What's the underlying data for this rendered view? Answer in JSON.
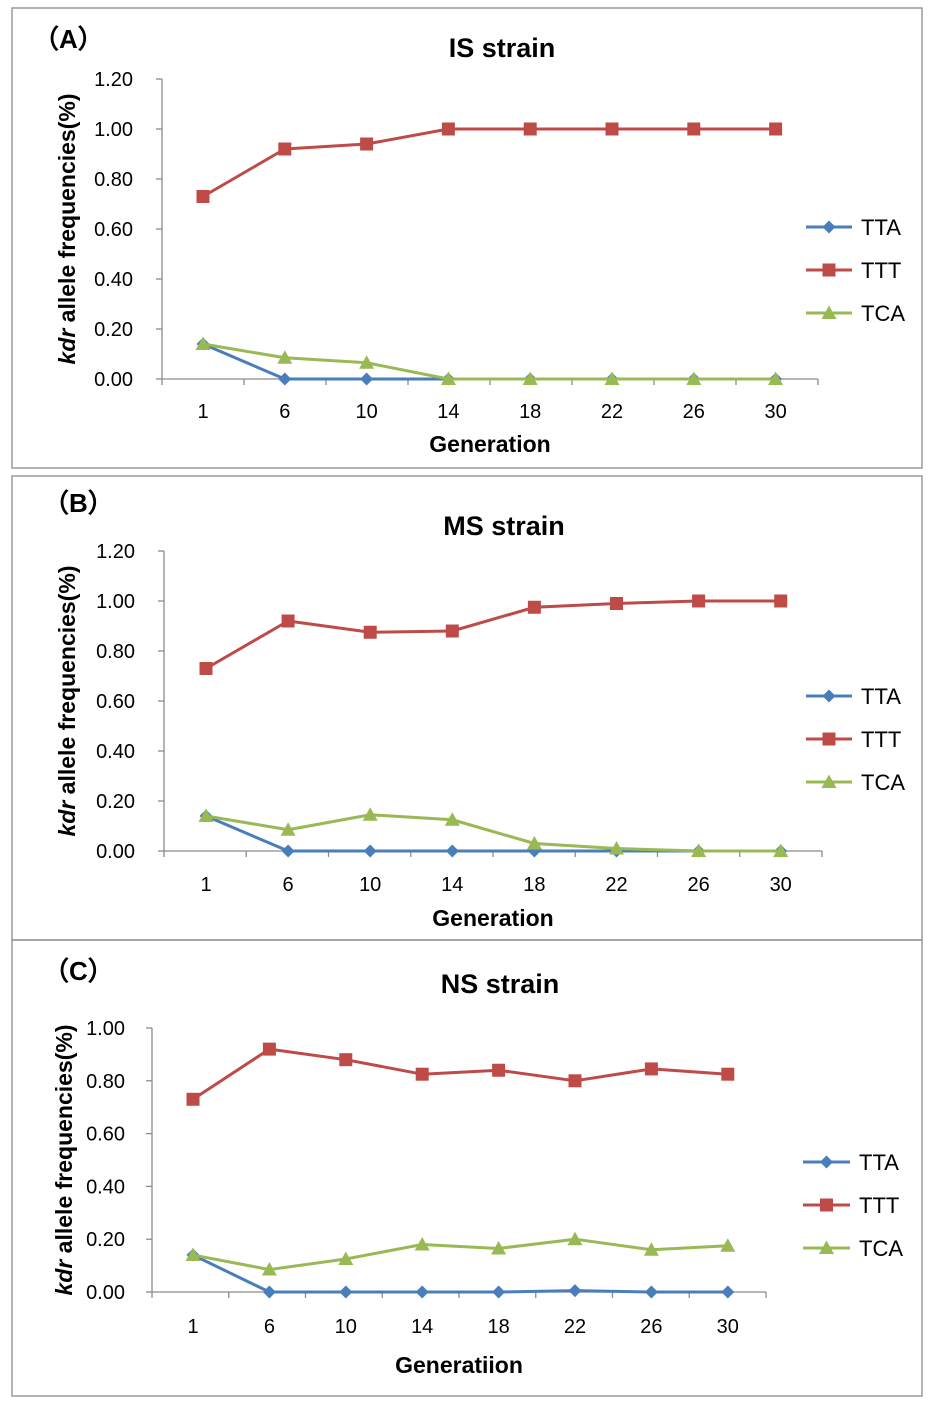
{
  "chart_data": [
    {
      "type": "line",
      "panel_label": "（A）",
      "title": "IS strain",
      "xlabel": "Generation",
      "ylabel_italic": "kdr",
      "ylabel_rest": " allele frequencies(%)",
      "categories": [
        "1",
        "6",
        "10",
        "14",
        "18",
        "22",
        "26",
        "30"
      ],
      "ylim": [
        0,
        1.2
      ],
      "yticks": [
        "0.00",
        "0.20",
        "0.40",
        "0.60",
        "0.80",
        "1.00",
        "1.20"
      ],
      "legend_position": "right",
      "grid": false,
      "series": [
        {
          "name": "TTA",
          "color": "#4a7ebb",
          "marker": "diamond",
          "values": [
            0.14,
            0,
            0,
            0,
            0,
            0,
            0,
            0
          ]
        },
        {
          "name": "TTT",
          "color": "#be4b48",
          "marker": "square",
          "values": [
            0.73,
            0.92,
            0.94,
            1.0,
            1.0,
            1.0,
            1.0,
            1.0
          ]
        },
        {
          "name": "TCA",
          "color": "#98b954",
          "marker": "triangle",
          "values": [
            0.14,
            0.085,
            0.065,
            0,
            0,
            0,
            0,
            0
          ]
        }
      ]
    },
    {
      "type": "line",
      "panel_label": "（B）",
      "title": "MS strain",
      "xlabel": "Generation",
      "ylabel_italic": "kdr",
      "ylabel_rest": " allele frequencies(%)",
      "categories": [
        "1",
        "6",
        "10",
        "14",
        "18",
        "22",
        "26",
        "30"
      ],
      "ylim": [
        0,
        1.2
      ],
      "yticks": [
        "0.00",
        "0.20",
        "0.40",
        "0.60",
        "0.80",
        "1.00",
        "1.20"
      ],
      "legend_position": "right",
      "grid": false,
      "series": [
        {
          "name": "TTA",
          "color": "#4a7ebb",
          "marker": "diamond",
          "values": [
            0.14,
            0,
            0,
            0,
            0,
            0,
            0,
            0
          ]
        },
        {
          "name": "TTT",
          "color": "#be4b48",
          "marker": "square",
          "values": [
            0.73,
            0.92,
            0.875,
            0.88,
            0.975,
            0.99,
            1.0,
            1.0
          ]
        },
        {
          "name": "TCA",
          "color": "#98b954",
          "marker": "triangle",
          "values": [
            0.14,
            0.085,
            0.145,
            0.125,
            0.03,
            0.01,
            0,
            0
          ]
        }
      ]
    },
    {
      "type": "line",
      "panel_label": "（C）",
      "title": "NS strain",
      "xlabel": "Generatiion",
      "ylabel_italic": "kdr",
      "ylabel_rest": " allele frequencies(%)",
      "categories": [
        "1",
        "6",
        "10",
        "14",
        "18",
        "22",
        "26",
        "30"
      ],
      "ylim": [
        0,
        1.0
      ],
      "yticks": [
        "0.00",
        "0.20",
        "0.40",
        "0.60",
        "0.80",
        "1.00"
      ],
      "legend_position": "right",
      "grid": false,
      "series": [
        {
          "name": "TTA",
          "color": "#4a7ebb",
          "marker": "diamond",
          "values": [
            0.14,
            0,
            0,
            0,
            0,
            0.005,
            0,
            0
          ]
        },
        {
          "name": "TTT",
          "color": "#be4b48",
          "marker": "square",
          "values": [
            0.73,
            0.92,
            0.88,
            0.825,
            0.84,
            0.8,
            0.845,
            0.825
          ]
        },
        {
          "name": "TCA",
          "color": "#98b954",
          "marker": "triangle",
          "values": [
            0.14,
            0.085,
            0.125,
            0.18,
            0.165,
            0.2,
            0.16,
            0.175
          ]
        }
      ]
    }
  ]
}
